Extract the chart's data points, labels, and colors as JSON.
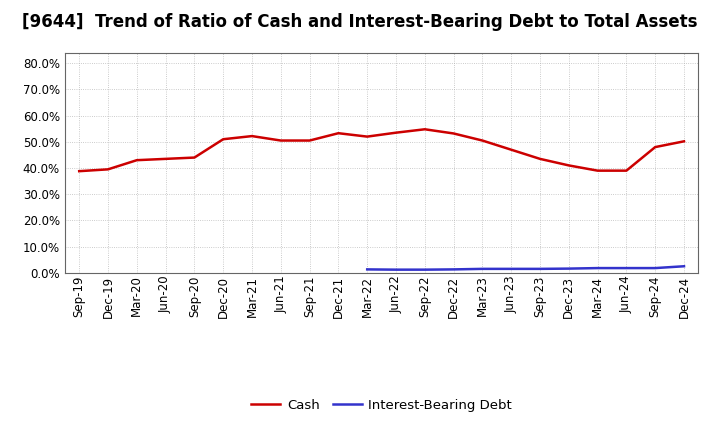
{
  "title": "[9644]  Trend of Ratio of Cash and Interest-Bearing Debt to Total Assets",
  "x_labels": [
    "Sep-19",
    "Dec-19",
    "Mar-20",
    "Jun-20",
    "Sep-20",
    "Dec-20",
    "Mar-21",
    "Jun-21",
    "Sep-21",
    "Dec-21",
    "Mar-22",
    "Jun-22",
    "Sep-22",
    "Dec-22",
    "Mar-23",
    "Jun-23",
    "Sep-23",
    "Dec-23",
    "Mar-24",
    "Jun-24",
    "Sep-24",
    "Dec-24"
  ],
  "cash": [
    0.388,
    0.395,
    0.43,
    0.435,
    0.44,
    0.51,
    0.522,
    0.505,
    0.505,
    0.533,
    0.52,
    0.535,
    0.548,
    0.532,
    0.505,
    0.47,
    0.435,
    0.41,
    0.39,
    0.39,
    0.48,
    0.502
  ],
  "debt": [
    null,
    null,
    null,
    null,
    null,
    null,
    null,
    null,
    null,
    null,
    0.013,
    0.012,
    0.012,
    0.013,
    0.015,
    0.015,
    0.015,
    0.016,
    0.018,
    0.018,
    0.018,
    0.025
  ],
  "cash_color": "#cc0000",
  "debt_color": "#3333cc",
  "background_color": "#ffffff",
  "grid_color": "#aaaaaa",
  "ylim": [
    0.0,
    0.84
  ],
  "yticks": [
    0.0,
    0.1,
    0.2,
    0.3,
    0.4,
    0.5,
    0.6,
    0.7,
    0.8
  ],
  "legend_cash": "Cash",
  "legend_debt": "Interest-Bearing Debt",
  "title_fontsize": 12,
  "axis_fontsize": 8.5,
  "legend_fontsize": 9.5
}
